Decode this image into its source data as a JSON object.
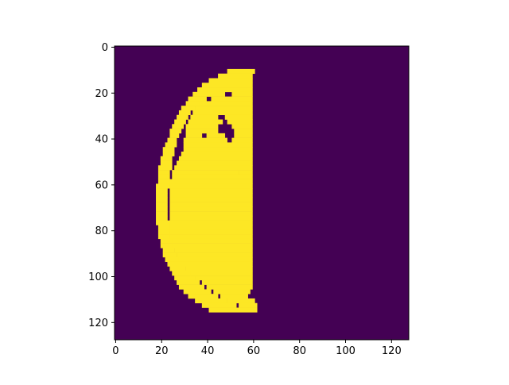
{
  "chart_data": {
    "type": "heatmap",
    "title": "",
    "xlabel": "",
    "ylabel": "",
    "rows": 128,
    "cols": 128,
    "xlim": [
      -0.5,
      127.5
    ],
    "ylim": [
      127.5,
      -0.5
    ],
    "y_inverted": true,
    "x_ticks": [
      0,
      20,
      40,
      60,
      80,
      100,
      120
    ],
    "y_ticks": [
      0,
      20,
      40,
      60,
      80,
      100,
      120
    ],
    "x_tick_labels": [
      "0",
      "20",
      "40",
      "60",
      "80",
      "100",
      "120"
    ],
    "y_tick_labels": [
      "0",
      "20",
      "40",
      "60",
      "80",
      "100",
      "120"
    ],
    "colormap": "viridis",
    "value_colors": {
      "0": "#440154",
      "1": "#fde725"
    },
    "mask_description_binary": true,
    "segments": [
      {
        "row": 10,
        "ranges": [
          [
            49,
            60
          ]
        ]
      },
      {
        "row": 12,
        "ranges": [
          [
            45,
            59
          ]
        ]
      },
      {
        "row": 14,
        "ranges": [
          [
            41,
            59
          ]
        ]
      },
      {
        "row": 16,
        "ranges": [
          [
            38,
            59
          ]
        ]
      },
      {
        "row": 18,
        "ranges": [
          [
            36,
            59
          ]
        ]
      },
      {
        "row": 20,
        "ranges": [
          [
            34,
            47
          ],
          [
            51,
            59
          ]
        ]
      },
      {
        "row": 22,
        "ranges": [
          [
            32,
            39
          ],
          [
            42,
            59
          ]
        ]
      },
      {
        "row": 24,
        "ranges": [
          [
            31,
            36
          ],
          [
            37,
            59
          ]
        ]
      },
      {
        "row": 26,
        "ranges": [
          [
            29,
            34
          ],
          [
            35,
            59
          ]
        ]
      },
      {
        "row": 28,
        "ranges": [
          [
            28,
            32
          ],
          [
            34,
            59
          ]
        ]
      },
      {
        "row": 30,
        "ranges": [
          [
            27,
            31
          ],
          [
            33,
            44
          ],
          [
            48,
            59
          ]
        ]
      },
      {
        "row": 32,
        "ranges": [
          [
            26,
            30
          ],
          [
            32,
            46
          ],
          [
            49,
            59
          ]
        ]
      },
      {
        "row": 34,
        "ranges": [
          [
            25,
            29
          ],
          [
            31,
            44
          ],
          [
            51,
            59
          ]
        ]
      },
      {
        "row": 36,
        "ranges": [
          [
            24,
            28
          ],
          [
            31,
            44
          ],
          [
            52,
            59
          ]
        ]
      },
      {
        "row": 38,
        "ranges": [
          [
            24,
            27
          ],
          [
            31,
            37
          ],
          [
            40,
            47
          ],
          [
            52,
            59
          ]
        ]
      },
      {
        "row": 40,
        "ranges": [
          [
            23,
            26
          ],
          [
            30,
            48
          ],
          [
            51,
            59
          ]
        ]
      },
      {
        "row": 42,
        "ranges": [
          [
            22,
            26
          ],
          [
            30,
            59
          ]
        ]
      },
      {
        "row": 44,
        "ranges": [
          [
            21,
            25
          ],
          [
            30,
            59
          ]
        ]
      },
      {
        "row": 46,
        "ranges": [
          [
            21,
            25
          ],
          [
            29,
            59
          ]
        ]
      },
      {
        "row": 48,
        "ranges": [
          [
            20,
            24
          ],
          [
            28,
            59
          ]
        ]
      },
      {
        "row": 50,
        "ranges": [
          [
            20,
            24
          ],
          [
            27,
            59
          ]
        ]
      },
      {
        "row": 52,
        "ranges": [
          [
            19,
            24
          ],
          [
            26,
            59
          ]
        ]
      },
      {
        "row": 54,
        "ranges": [
          [
            19,
            23
          ],
          [
            25,
            53
          ],
          [
            54,
            59
          ]
        ]
      },
      {
        "row": 56,
        "ranges": [
          [
            19,
            23
          ],
          [
            25,
            59
          ]
        ]
      },
      {
        "row": 58,
        "ranges": [
          [
            19,
            23
          ],
          [
            24,
            59
          ]
        ]
      },
      {
        "row": 60,
        "ranges": [
          [
            18,
            23
          ],
          [
            24,
            59
          ]
        ]
      },
      {
        "row": 62,
        "ranges": [
          [
            18,
            22
          ],
          [
            24,
            59
          ]
        ]
      },
      {
        "row": 64,
        "ranges": [
          [
            18,
            22
          ],
          [
            24,
            59
          ]
        ]
      },
      {
        "row": 66,
        "ranges": [
          [
            18,
            22
          ],
          [
            24,
            59
          ]
        ]
      },
      {
        "row": 68,
        "ranges": [
          [
            18,
            22
          ],
          [
            24,
            59
          ]
        ]
      },
      {
        "row": 70,
        "ranges": [
          [
            18,
            22
          ],
          [
            24,
            59
          ]
        ]
      },
      {
        "row": 72,
        "ranges": [
          [
            18,
            22
          ],
          [
            24,
            59
          ]
        ]
      },
      {
        "row": 74,
        "ranges": [
          [
            18,
            22
          ],
          [
            24,
            59
          ]
        ]
      },
      {
        "row": 76,
        "ranges": [
          [
            18,
            23
          ],
          [
            24,
            59
          ]
        ]
      },
      {
        "row": 78,
        "ranges": [
          [
            19,
            23
          ],
          [
            24,
            59
          ]
        ]
      },
      {
        "row": 80,
        "ranges": [
          [
            19,
            23
          ],
          [
            24,
            59
          ]
        ]
      },
      {
        "row": 82,
        "ranges": [
          [
            19,
            23
          ],
          [
            24,
            59
          ]
        ]
      },
      {
        "row": 84,
        "ranges": [
          [
            20,
            24
          ],
          [
            25,
            59
          ]
        ]
      },
      {
        "row": 86,
        "ranges": [
          [
            20,
            24
          ],
          [
            25,
            59
          ]
        ]
      },
      {
        "row": 88,
        "ranges": [
          [
            21,
            25
          ],
          [
            26,
            59
          ]
        ]
      },
      {
        "row": 90,
        "ranges": [
          [
            21,
            26
          ],
          [
            27,
            59
          ]
        ]
      },
      {
        "row": 92,
        "ranges": [
          [
            22,
            27
          ],
          [
            28,
            59
          ]
        ]
      },
      {
        "row": 94,
        "ranges": [
          [
            23,
            28
          ],
          [
            29,
            59
          ]
        ]
      },
      {
        "row": 96,
        "ranges": [
          [
            24,
            30
          ],
          [
            31,
            59
          ]
        ]
      },
      {
        "row": 98,
        "ranges": [
          [
            25,
            32
          ],
          [
            33,
            59
          ]
        ]
      },
      {
        "row": 100,
        "ranges": [
          [
            26,
            34
          ],
          [
            35,
            59
          ]
        ]
      },
      {
        "row": 102,
        "ranges": [
          [
            27,
            36
          ],
          [
            38,
            59
          ]
        ]
      },
      {
        "row": 104,
        "ranges": [
          [
            28,
            38
          ],
          [
            40,
            59
          ]
        ]
      },
      {
        "row": 106,
        "ranges": [
          [
            30,
            41
          ],
          [
            43,
            58
          ]
        ]
      },
      {
        "row": 108,
        "ranges": [
          [
            32,
            44
          ],
          [
            46,
            57
          ]
        ]
      },
      {
        "row": 110,
        "ranges": [
          [
            35,
            48
          ],
          [
            49,
            60
          ]
        ]
      },
      {
        "row": 112,
        "ranges": [
          [
            38,
            52
          ],
          [
            54,
            61
          ]
        ]
      },
      {
        "row": 114,
        "ranges": [
          [
            41,
            61
          ]
        ]
      }
    ]
  }
}
